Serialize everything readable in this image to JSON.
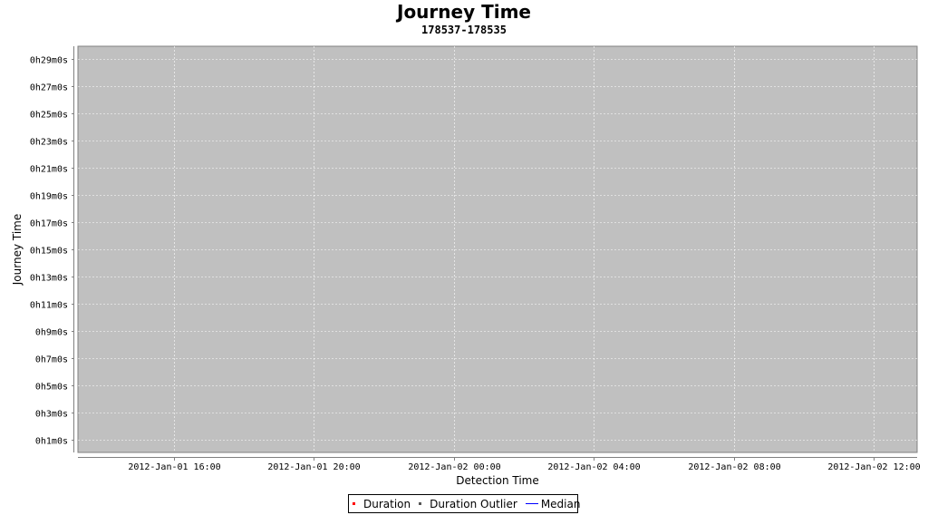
{
  "chart_data": {
    "type": "scatter",
    "title": "Journey Time",
    "subtitle": "178537-178535",
    "xlabel": "Detection Time",
    "ylabel": "Journey Time",
    "x_ticks": [
      "2012-Jan-01 16:00",
      "2012-Jan-01 20:00",
      "2012-Jan-02 00:00",
      "2012-Jan-02 04:00",
      "2012-Jan-02 08:00",
      "2012-Jan-02 12:00"
    ],
    "x_tick_hours": [
      0,
      4,
      8,
      12,
      16,
      20
    ],
    "y_ticks": [
      "0h1m0s",
      "0h3m0s",
      "0h5m0s",
      "0h7m0s",
      "0h9m0s",
      "0h11m0s",
      "0h13m0s",
      "0h15m0s",
      "0h17m0s",
      "0h19m0s",
      "0h21m0s",
      "0h23m0s",
      "0h25m0s",
      "0h27m0s",
      "0h29m0s"
    ],
    "y_tick_minutes": [
      1,
      3,
      5,
      7,
      9,
      11,
      13,
      15,
      17,
      19,
      21,
      23,
      25,
      27,
      29
    ],
    "grid": true,
    "legend_position": "bottom",
    "series": [
      {
        "name": "Duration",
        "color": "#ff0000",
        "marker": "square",
        "points": []
      },
      {
        "name": "Duration Outlier",
        "color": "#555555",
        "marker": "square",
        "points": []
      },
      {
        "name": "Median",
        "color": "#0000ff",
        "marker": "line",
        "points": []
      }
    ],
    "plot_background": "#c0c0c0"
  }
}
